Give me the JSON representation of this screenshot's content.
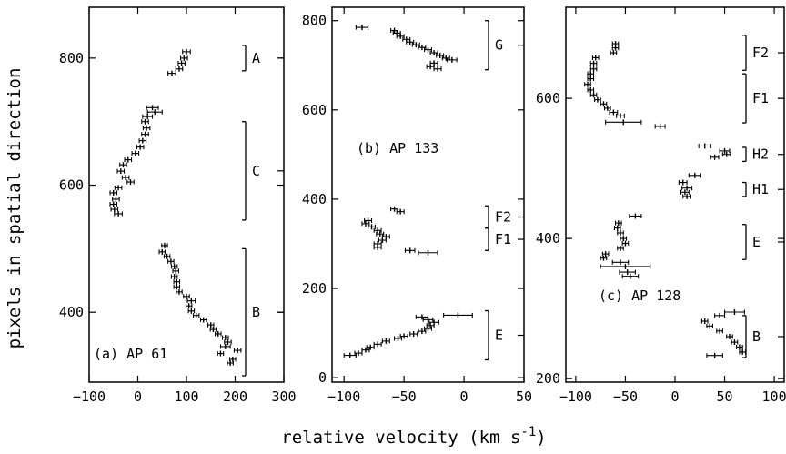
{
  "figure": {
    "xlabel": "relative velocity (km s",
    "xlabel_sup": "-1",
    "xlabel_end": ")",
    "ylabel": "pixels in spatial direction"
  },
  "chart_data": [
    {
      "type": "scatter",
      "panel_label": "(a) AP 61",
      "xlim": [
        -100,
        300
      ],
      "ylim": [
        290,
        880
      ],
      "xticks": [
        -100,
        0,
        100,
        200,
        300
      ],
      "xtick_labels": [
        "−100",
        "0",
        "100",
        "200",
        "300"
      ],
      "yticks": [
        400,
        600,
        800
      ],
      "ytick_labels": [
        "400",
        "600",
        "800"
      ],
      "grid": false,
      "points": [
        {
          "x": 100,
          "y": 810,
          "err": 8
        },
        {
          "x": 95,
          "y": 800,
          "err": 7
        },
        {
          "x": 90,
          "y": 792,
          "err": 7
        },
        {
          "x": 85,
          "y": 783,
          "err": 7
        },
        {
          "x": 70,
          "y": 776,
          "err": 8
        },
        {
          "x": 30,
          "y": 722,
          "err": 12
        },
        {
          "x": 35,
          "y": 715,
          "err": 15
        },
        {
          "x": 20,
          "y": 708,
          "err": 10
        },
        {
          "x": 15,
          "y": 700,
          "err": 7
        },
        {
          "x": 18,
          "y": 690,
          "err": 7
        },
        {
          "x": 15,
          "y": 680,
          "err": 7
        },
        {
          "x": 10,
          "y": 670,
          "err": 7
        },
        {
          "x": 5,
          "y": 660,
          "err": 7
        },
        {
          "x": -5,
          "y": 650,
          "err": 7
        },
        {
          "x": -20,
          "y": 640,
          "err": 7
        },
        {
          "x": -30,
          "y": 632,
          "err": 7
        },
        {
          "x": -35,
          "y": 622,
          "err": 7
        },
        {
          "x": -25,
          "y": 612,
          "err": 7
        },
        {
          "x": -15,
          "y": 605,
          "err": 7
        },
        {
          "x": -40,
          "y": 596,
          "err": 7
        },
        {
          "x": -50,
          "y": 588,
          "err": 7
        },
        {
          "x": -45,
          "y": 578,
          "err": 7
        },
        {
          "x": -50,
          "y": 570,
          "err": 7
        },
        {
          "x": -48,
          "y": 562,
          "err": 7
        },
        {
          "x": -40,
          "y": 555,
          "err": 8
        },
        {
          "x": 55,
          "y": 505,
          "err": 6
        },
        {
          "x": 50,
          "y": 495,
          "err": 6
        },
        {
          "x": 60,
          "y": 488,
          "err": 6
        },
        {
          "x": 68,
          "y": 480,
          "err": 6
        },
        {
          "x": 75,
          "y": 472,
          "err": 6
        },
        {
          "x": 78,
          "y": 465,
          "err": 6
        },
        {
          "x": 75,
          "y": 456,
          "err": 6
        },
        {
          "x": 80,
          "y": 448,
          "err": 6
        },
        {
          "x": 80,
          "y": 440,
          "err": 6
        },
        {
          "x": 85,
          "y": 432,
          "err": 6
        },
        {
          "x": 100,
          "y": 425,
          "err": 6
        },
        {
          "x": 110,
          "y": 418,
          "err": 8
        },
        {
          "x": 105,
          "y": 410,
          "err": 6
        },
        {
          "x": 110,
          "y": 402,
          "err": 6
        },
        {
          "x": 120,
          "y": 395,
          "err": 6
        },
        {
          "x": 135,
          "y": 388,
          "err": 6
        },
        {
          "x": 150,
          "y": 380,
          "err": 6
        },
        {
          "x": 155,
          "y": 373,
          "err": 6
        },
        {
          "x": 165,
          "y": 366,
          "err": 6
        },
        {
          "x": 180,
          "y": 360,
          "err": 6
        },
        {
          "x": 185,
          "y": 353,
          "err": 7
        },
        {
          "x": 180,
          "y": 346,
          "err": 10
        },
        {
          "x": 205,
          "y": 340,
          "err": 7
        },
        {
          "x": 170,
          "y": 335,
          "err": 6
        },
        {
          "x": 195,
          "y": 326,
          "err": 6
        },
        {
          "x": 190,
          "y": 320,
          "err": 6
        }
      ],
      "regions": [
        {
          "label": "A",
          "ymin": 780,
          "ymax": 820
        },
        {
          "label": "C",
          "ymin": 545,
          "ymax": 700
        },
        {
          "label": "B",
          "ymin": 300,
          "ymax": 500
        }
      ]
    },
    {
      "type": "scatter",
      "panel_label": "(b) AP 133",
      "xlim": [
        -110,
        50
      ],
      "ylim": [
        -10,
        830
      ],
      "xticks": [
        -100,
        -50,
        0,
        50
      ],
      "xtick_labels": [
        "−100",
        "−50",
        "0",
        "50"
      ],
      "yticks": [
        0,
        200,
        400,
        600,
        800
      ],
      "ytick_labels": [
        "0",
        "200",
        "400",
        "600",
        "800"
      ],
      "grid": false,
      "points": [
        {
          "x": -85,
          "y": 785,
          "err": 5
        },
        {
          "x": -58,
          "y": 778,
          "err": 3
        },
        {
          "x": -56,
          "y": 772,
          "err": 3
        },
        {
          "x": -53,
          "y": 765,
          "err": 3
        },
        {
          "x": -48,
          "y": 758,
          "err": 3
        },
        {
          "x": -45,
          "y": 752,
          "err": 3
        },
        {
          "x": -40,
          "y": 746,
          "err": 3
        },
        {
          "x": -35,
          "y": 740,
          "err": 3
        },
        {
          "x": -30,
          "y": 735,
          "err": 3
        },
        {
          "x": -25,
          "y": 728,
          "err": 3
        },
        {
          "x": -20,
          "y": 722,
          "err": 3
        },
        {
          "x": -15,
          "y": 716,
          "err": 3
        },
        {
          "x": -10,
          "y": 712,
          "err": 4
        },
        {
          "x": -25,
          "y": 705,
          "err": 3
        },
        {
          "x": -28,
          "y": 697,
          "err": 3
        },
        {
          "x": -22,
          "y": 692,
          "err": 3
        },
        {
          "x": -58,
          "y": 378,
          "err": 3
        },
        {
          "x": -53,
          "y": 372,
          "err": 3
        },
        {
          "x": -80,
          "y": 352,
          "err": 3
        },
        {
          "x": -82,
          "y": 345,
          "err": 3
        },
        {
          "x": -77,
          "y": 338,
          "err": 3
        },
        {
          "x": -72,
          "y": 330,
          "err": 3
        },
        {
          "x": -70,
          "y": 322,
          "err": 3
        },
        {
          "x": -65,
          "y": 316,
          "err": 3
        },
        {
          "x": -68,
          "y": 308,
          "err": 3
        },
        {
          "x": -72,
          "y": 300,
          "err": 3
        },
        {
          "x": -72,
          "y": 292,
          "err": 3
        },
        {
          "x": -45,
          "y": 285,
          "err": 4
        },
        {
          "x": -30,
          "y": 280,
          "err": 8
        },
        {
          "x": -95,
          "y": 50,
          "err": 5
        },
        {
          "x": -88,
          "y": 55,
          "err": 3
        },
        {
          "x": -82,
          "y": 62,
          "err": 3
        },
        {
          "x": -78,
          "y": 68,
          "err": 3
        },
        {
          "x": -72,
          "y": 75,
          "err": 3
        },
        {
          "x": -65,
          "y": 82,
          "err": 3
        },
        {
          "x": -55,
          "y": 88,
          "err": 3
        },
        {
          "x": -50,
          "y": 93,
          "err": 3
        },
        {
          "x": -42,
          "y": 98,
          "err": 3
        },
        {
          "x": -35,
          "y": 104,
          "err": 3
        },
        {
          "x": -30,
          "y": 110,
          "err": 3
        },
        {
          "x": -28,
          "y": 117,
          "err": 3
        },
        {
          "x": -25,
          "y": 124,
          "err": 4
        },
        {
          "x": -30,
          "y": 130,
          "err": 4
        },
        {
          "x": -35,
          "y": 136,
          "err": 5
        },
        {
          "x": -5,
          "y": 140,
          "err": 12
        }
      ],
      "regions": [
        {
          "label": "G",
          "ymin": 690,
          "ymax": 800
        },
        {
          "label": "F2",
          "ymin": 335,
          "ymax": 385
        },
        {
          "label": "F1",
          "ymin": 285,
          "ymax": 335
        },
        {
          "label": "E",
          "ymin": 40,
          "ymax": 150
        }
      ]
    },
    {
      "type": "scatter",
      "panel_label": "(c) AP 128",
      "xlim": [
        -110,
        110
      ],
      "ylim": [
        195,
        730
      ],
      "xticks": [
        -100,
        -50,
        0,
        50,
        100
      ],
      "xtick_labels": [
        "−100",
        "−50",
        "0",
        "50",
        "100"
      ],
      "yticks": [
        200,
        400,
        600
      ],
      "ytick_labels": [
        "200",
        "400",
        "600"
      ],
      "grid": false,
      "points": [
        {
          "x": -60,
          "y": 678,
          "err": 3
        },
        {
          "x": -60,
          "y": 672,
          "err": 3
        },
        {
          "x": -62,
          "y": 665,
          "err": 3
        },
        {
          "x": -80,
          "y": 658,
          "err": 3
        },
        {
          "x": -82,
          "y": 650,
          "err": 3
        },
        {
          "x": -82,
          "y": 642,
          "err": 3
        },
        {
          "x": -85,
          "y": 635,
          "err": 3
        },
        {
          "x": -85,
          "y": 628,
          "err": 3
        },
        {
          "x": -88,
          "y": 620,
          "err": 3
        },
        {
          "x": -85,
          "y": 612,
          "err": 3
        },
        {
          "x": -82,
          "y": 605,
          "err": 3
        },
        {
          "x": -78,
          "y": 598,
          "err": 3
        },
        {
          "x": -72,
          "y": 592,
          "err": 3
        },
        {
          "x": -68,
          "y": 586,
          "err": 3
        },
        {
          "x": -62,
          "y": 580,
          "err": 4
        },
        {
          "x": -55,
          "y": 575,
          "err": 4
        },
        {
          "x": -52,
          "y": 566,
          "err": 18
        },
        {
          "x": -15,
          "y": 560,
          "err": 5
        },
        {
          "x": 30,
          "y": 532,
          "err": 6
        },
        {
          "x": 50,
          "y": 525,
          "err": 5
        },
        {
          "x": 52,
          "y": 520,
          "err": 4
        },
        {
          "x": 40,
          "y": 516,
          "err": 4
        },
        {
          "x": 20,
          "y": 490,
          "err": 6
        },
        {
          "x": 8,
          "y": 480,
          "err": 4
        },
        {
          "x": 12,
          "y": 472,
          "err": 5
        },
        {
          "x": 10,
          "y": 466,
          "err": 4
        },
        {
          "x": 12,
          "y": 460,
          "err": 4
        },
        {
          "x": -40,
          "y": 432,
          "err": 6
        },
        {
          "x": -57,
          "y": 422,
          "err": 3
        },
        {
          "x": -58,
          "y": 415,
          "err": 3
        },
        {
          "x": -55,
          "y": 408,
          "err": 3
        },
        {
          "x": -52,
          "y": 400,
          "err": 3
        },
        {
          "x": -50,
          "y": 393,
          "err": 3
        },
        {
          "x": -55,
          "y": 386,
          "err": 3
        },
        {
          "x": -70,
          "y": 378,
          "err": 3
        },
        {
          "x": -72,
          "y": 372,
          "err": 3
        },
        {
          "x": -55,
          "y": 366,
          "err": 8
        },
        {
          "x": -50,
          "y": 360,
          "err": 25
        },
        {
          "x": -48,
          "y": 352,
          "err": 8
        },
        {
          "x": -45,
          "y": 346,
          "err": 8
        },
        {
          "x": 60,
          "y": 295,
          "err": 10
        },
        {
          "x": 45,
          "y": 290,
          "err": 5
        },
        {
          "x": 30,
          "y": 282,
          "err": 3
        },
        {
          "x": 35,
          "y": 275,
          "err": 3
        },
        {
          "x": 45,
          "y": 268,
          "err": 3
        },
        {
          "x": 55,
          "y": 260,
          "err": 3
        },
        {
          "x": 60,
          "y": 252,
          "err": 3
        },
        {
          "x": 65,
          "y": 245,
          "err": 3
        },
        {
          "x": 68,
          "y": 238,
          "err": 3
        },
        {
          "x": 40,
          "y": 233,
          "err": 8
        }
      ],
      "regions": [
        {
          "label": "F2",
          "ymin": 640,
          "ymax": 690
        },
        {
          "label": "F1",
          "ymin": 565,
          "ymax": 635
        },
        {
          "label": "H2",
          "ymin": 510,
          "ymax": 530
        },
        {
          "label": "H1",
          "ymin": 460,
          "ymax": 480
        },
        {
          "label": "E",
          "ymin": 370,
          "ymax": 420
        },
        {
          "label": "B",
          "ymin": 230,
          "ymax": 290
        }
      ]
    }
  ]
}
